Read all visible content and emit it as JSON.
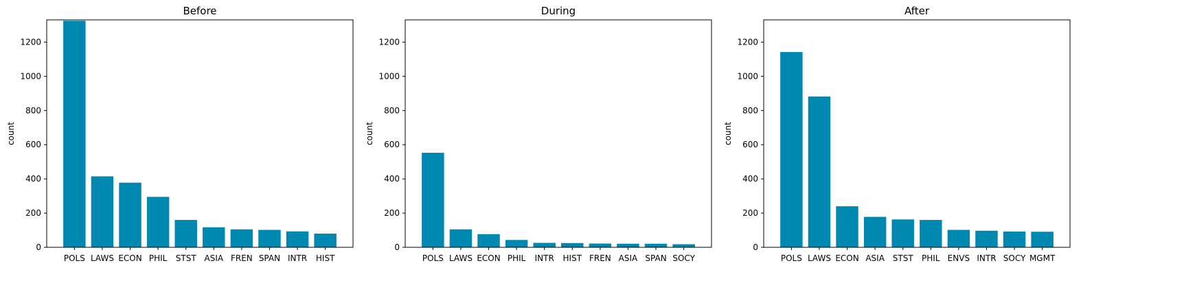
{
  "colors": {
    "bar": "#0088b0"
  },
  "chart_data": [
    {
      "type": "bar",
      "title": "Before",
      "ylabel": "count",
      "ylim": [
        0,
        1330
      ],
      "yticks": [
        0,
        200,
        400,
        600,
        800,
        1000,
        1200
      ],
      "categories": [
        "POLS",
        "LAWS",
        "ECON",
        "PHIL",
        "STST",
        "ASIA",
        "FREN",
        "SPAN",
        "INTR",
        "HIST"
      ],
      "values": [
        1325,
        415,
        378,
        295,
        160,
        117,
        105,
        102,
        93,
        80
      ]
    },
    {
      "type": "bar",
      "title": "During",
      "ylabel": "count",
      "ylim": [
        0,
        1330
      ],
      "yticks": [
        0,
        200,
        400,
        600,
        800,
        1000,
        1200
      ],
      "categories": [
        "POLS",
        "LAWS",
        "ECON",
        "PHIL",
        "INTR",
        "HIST",
        "FREN",
        "ASIA",
        "SPAN",
        "SOCY"
      ],
      "values": [
        553,
        105,
        77,
        43,
        26,
        25,
        22,
        21,
        21,
        18
      ]
    },
    {
      "type": "bar",
      "title": "After",
      "ylabel": "count",
      "ylim": [
        0,
        1330
      ],
      "yticks": [
        0,
        200,
        400,
        600,
        800,
        1000,
        1200
      ],
      "categories": [
        "POLS",
        "LAWS",
        "ECON",
        "ASIA",
        "STST",
        "PHIL",
        "ENVS",
        "INTR",
        "SOCY",
        "MGMT"
      ],
      "values": [
        1142,
        882,
        240,
        178,
        163,
        160,
        102,
        97,
        92,
        91
      ]
    }
  ]
}
